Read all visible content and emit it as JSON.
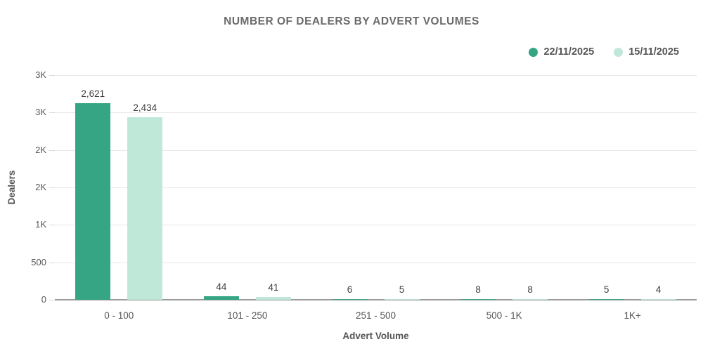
{
  "title": "NUMBER OF DEALERS BY ADVERT VOLUMES",
  "legend": {
    "items": [
      {
        "label": "22/11/2025",
        "color": "#36a583"
      },
      {
        "label": "15/11/2025",
        "color": "#c0e8d9"
      }
    ]
  },
  "chart_data": {
    "type": "bar",
    "title": "NUMBER OF DEALERS BY ADVERT VOLUMES",
    "xlabel": "Advert Volume",
    "ylabel": "Dealers",
    "categories": [
      "0 - 100",
      "101 - 250",
      "251 - 500",
      "500 - 1K",
      "1K+"
    ],
    "series": [
      {
        "name": "22/11/2025",
        "color": "#36a583",
        "values": [
          2621,
          44,
          6,
          8,
          5
        ],
        "labels": [
          "2,621",
          "44",
          "6",
          "8",
          "5"
        ]
      },
      {
        "name": "15/11/2025",
        "color": "#c0e8d9",
        "values": [
          2434,
          41,
          5,
          8,
          4
        ],
        "labels": [
          "2,434",
          "41",
          "5",
          "8",
          "4"
        ]
      }
    ],
    "ylim": [
      0,
      3000
    ],
    "y_ticks": [
      {
        "value": 0,
        "label": "0"
      },
      {
        "value": 500,
        "label": "500"
      },
      {
        "value": 1000,
        "label": "1K"
      },
      {
        "value": 1500,
        "label": "2K"
      },
      {
        "value": 2000,
        "label": "2K"
      },
      {
        "value": 2500,
        "label": "3K"
      },
      {
        "value": 3000,
        "label": "3K"
      }
    ],
    "grid": "horizontal",
    "legend_position": "top-right"
  }
}
